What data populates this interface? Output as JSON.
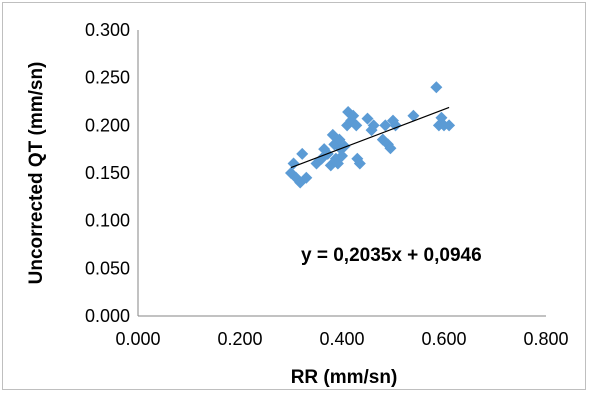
{
  "chart_data": {
    "type": "scatter",
    "xlabel": "RR (mm/sn)",
    "ylabel": "Uncorrected QT (mm/sn)",
    "xlim": [
      0,
      0.8
    ],
    "ylim": [
      0,
      0.3
    ],
    "x_ticks": [
      "0.000",
      "0.200",
      "0.400",
      "0.600",
      "0.800"
    ],
    "y_ticks": [
      "0.000",
      "0.050",
      "0.100",
      "0.150",
      "0.200",
      "0.250",
      "0.300"
    ],
    "grid": false,
    "marker_color": "#5b9bd5",
    "trendline": {
      "equation": "y = 0,2035x + 0,0946",
      "slope": 0.2035,
      "intercept": 0.0946,
      "x_range": [
        0.3,
        0.61
      ]
    },
    "series": [
      {
        "points": [
          [
            0.3,
            0.15
          ],
          [
            0.305,
            0.16
          ],
          [
            0.31,
            0.145
          ],
          [
            0.318,
            0.14
          ],
          [
            0.322,
            0.17
          ],
          [
            0.33,
            0.145
          ],
          [
            0.35,
            0.16
          ],
          [
            0.36,
            0.165
          ],
          [
            0.365,
            0.175
          ],
          [
            0.372,
            0.17
          ],
          [
            0.378,
            0.158
          ],
          [
            0.382,
            0.19
          ],
          [
            0.385,
            0.18
          ],
          [
            0.388,
            0.165
          ],
          [
            0.392,
            0.16
          ],
          [
            0.395,
            0.185
          ],
          [
            0.398,
            0.175
          ],
          [
            0.4,
            0.168
          ],
          [
            0.405,
            0.178
          ],
          [
            0.41,
            0.2
          ],
          [
            0.412,
            0.214
          ],
          [
            0.418,
            0.205
          ],
          [
            0.422,
            0.21
          ],
          [
            0.428,
            0.2
          ],
          [
            0.43,
            0.165
          ],
          [
            0.435,
            0.16
          ],
          [
            0.45,
            0.207
          ],
          [
            0.458,
            0.195
          ],
          [
            0.462,
            0.2
          ],
          [
            0.48,
            0.185
          ],
          [
            0.485,
            0.2
          ],
          [
            0.49,
            0.18
          ],
          [
            0.495,
            0.176
          ],
          [
            0.5,
            0.205
          ],
          [
            0.505,
            0.2
          ],
          [
            0.54,
            0.21
          ],
          [
            0.585,
            0.24
          ],
          [
            0.59,
            0.2
          ],
          [
            0.595,
            0.208
          ],
          [
            0.6,
            0.2
          ],
          [
            0.61,
            0.2
          ]
        ]
      }
    ]
  }
}
